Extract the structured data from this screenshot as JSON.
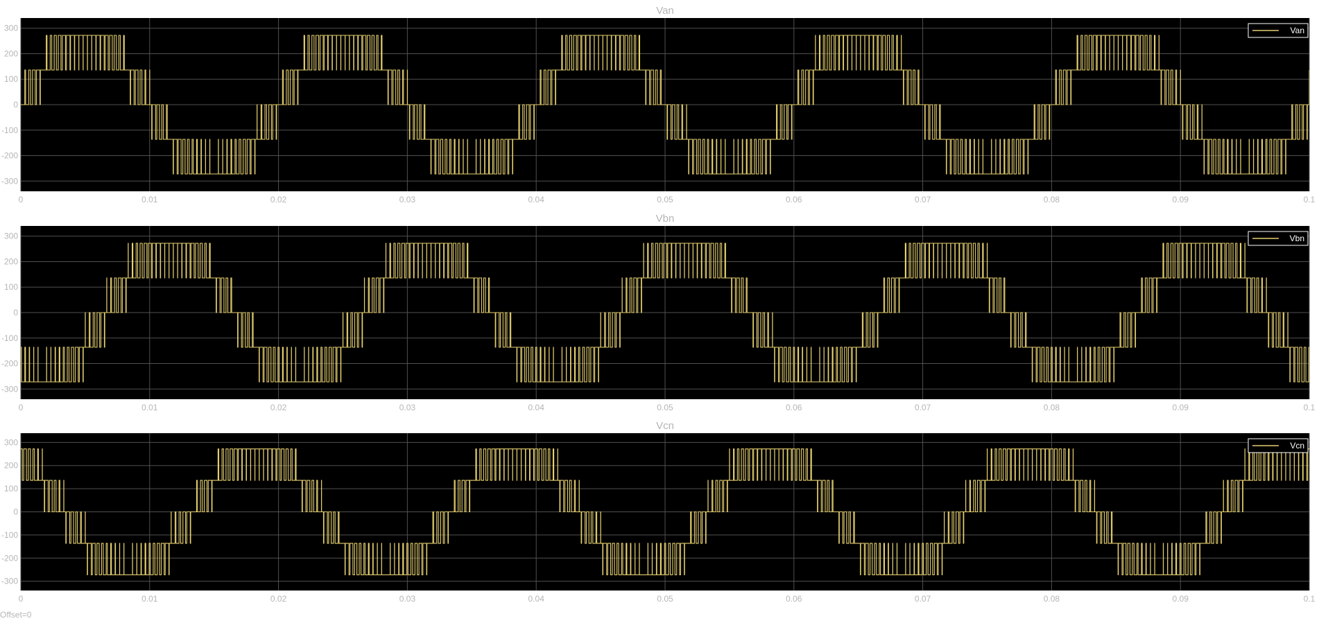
{
  "colors": {
    "background": "#ffffff",
    "plot_bg": "#000000",
    "grid": "#505050",
    "trace": "#e6d070",
    "label": "#b5b5b5",
    "legend_bg": "#000000",
    "legend_text": "#ffffff",
    "legend_border": "#ffffff"
  },
  "footer": {
    "offset_text": "Offset=0"
  },
  "chart_data": [
    {
      "type": "line",
      "title": "Van",
      "legend_position": "top-right",
      "grid": true,
      "x_ticks": [
        0,
        0.01,
        0.02,
        0.03,
        0.04,
        0.05,
        0.06,
        0.07,
        0.08,
        0.09,
        0.1
      ],
      "x_tick_labels": [
        "0",
        "0.01",
        "0.02",
        "0.03",
        "0.04",
        "0.05",
        "0.06",
        "0.07",
        "0.08",
        "0.09",
        "0.1"
      ],
      "y_ticks": [
        300,
        200,
        100,
        0,
        -100,
        -200,
        -300
      ],
      "y_tick_labels": [
        "300",
        "200",
        "100",
        "0",
        "-100",
        "-200",
        "-300"
      ],
      "xlim": [
        0,
        0.1
      ],
      "ylim": [
        -340,
        340
      ],
      "series": [
        {
          "name": "Van",
          "levels": [
            -272,
            -136,
            0,
            136,
            272
          ],
          "fundamental_hz": 50,
          "phase_deg": 0,
          "carrier_hz": 3000,
          "amplitude": 272
        }
      ]
    },
    {
      "type": "line",
      "title": "Vbn",
      "legend_position": "top-right",
      "grid": true,
      "x_ticks": [
        0,
        0.01,
        0.02,
        0.03,
        0.04,
        0.05,
        0.06,
        0.07,
        0.08,
        0.09,
        0.1
      ],
      "x_tick_labels": [
        "0",
        "0.01",
        "0.02",
        "0.03",
        "0.04",
        "0.05",
        "0.06",
        "0.07",
        "0.08",
        "0.09",
        "0.1"
      ],
      "y_ticks": [
        300,
        200,
        100,
        0,
        -100,
        -200,
        -300
      ],
      "y_tick_labels": [
        "300",
        "200",
        "100",
        "0",
        "-100",
        "-200",
        "-300"
      ],
      "xlim": [
        0,
        0.1
      ],
      "ylim": [
        -340,
        340
      ],
      "series": [
        {
          "name": "Vbn",
          "levels": [
            -272,
            -136,
            0,
            136,
            272
          ],
          "fundamental_hz": 50,
          "phase_deg": -120,
          "carrier_hz": 3000,
          "amplitude": 272
        }
      ]
    },
    {
      "type": "line",
      "title": "Vcn",
      "legend_position": "top-right",
      "grid": true,
      "x_ticks": [
        0,
        0.01,
        0.02,
        0.03,
        0.04,
        0.05,
        0.06,
        0.07,
        0.08,
        0.09,
        0.1
      ],
      "x_tick_labels": [
        "0",
        "0.01",
        "0.02",
        "0.03",
        "0.04",
        "0.05",
        "0.06",
        "0.07",
        "0.08",
        "0.09",
        "0.1"
      ],
      "y_ticks": [
        300,
        200,
        100,
        0,
        -100,
        -200,
        -300
      ],
      "y_tick_labels": [
        "300",
        "200",
        "100",
        "0",
        "-100",
        "-200",
        "-300"
      ],
      "xlim": [
        0,
        0.1
      ],
      "ylim": [
        -340,
        340
      ],
      "series": [
        {
          "name": "Vcn",
          "levels": [
            -272,
            -136,
            0,
            136,
            272
          ],
          "fundamental_hz": 50,
          "phase_deg": 120,
          "carrier_hz": 3000,
          "amplitude": 272
        }
      ]
    }
  ]
}
